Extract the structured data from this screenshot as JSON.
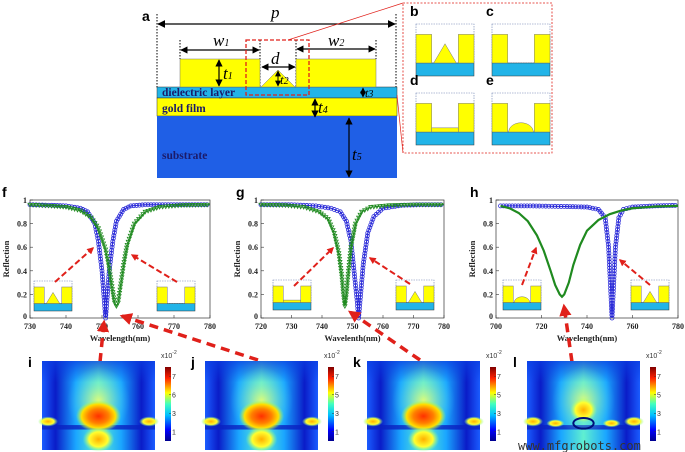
{
  "panel_a": {
    "label": "a",
    "dims": {
      "p": {
        "sym": "p",
        "sub": ""
      },
      "w1": {
        "sym": "w",
        "sub": "1"
      },
      "w2": {
        "sym": "w",
        "sub": "2"
      },
      "d": {
        "sym": "d",
        "sub": ""
      },
      "t1": {
        "sym": "t",
        "sub": "1"
      },
      "t2": {
        "sym": "t",
        "sub": "2"
      },
      "t3": {
        "sym": "t",
        "sub": "3"
      },
      "t4": {
        "sym": "t",
        "sub": "4"
      },
      "t5": {
        "sym": "t",
        "sub": "5"
      }
    },
    "layers": {
      "dielectric": "dielectric layer",
      "gold": "gold film",
      "substrate": "substrate"
    }
  },
  "subpanels": [
    {
      "label": "b",
      "shape": "triangle"
    },
    {
      "label": "c",
      "shape": "empty"
    },
    {
      "label": "d",
      "shape": "flat"
    },
    {
      "label": "e",
      "shape": "dome"
    }
  ],
  "maps": [
    {
      "label": "i",
      "scale": "x10",
      "exp": "-2",
      "ticks": [
        "1",
        "3",
        "6",
        "7"
      ]
    },
    {
      "label": "j",
      "scale": "x10",
      "exp": "-2",
      "ticks": [
        "1",
        "3",
        "5",
        "7"
      ]
    },
    {
      "label": "k",
      "scale": "x10",
      "exp": "-2",
      "ticks": [
        "1",
        "3",
        "5",
        "7"
      ]
    },
    {
      "label": "l",
      "scale": "x10",
      "exp": "-2",
      "ticks": [
        "1",
        "3",
        "5",
        "7"
      ]
    }
  ],
  "watermark": "www.mfgrobots.com",
  "colors": {
    "gold": "#ffff00",
    "dielectric": "#22b4e8",
    "substrate": "#1f5fe6",
    "blue_series": "#2a2ad8",
    "green_series": "#1f8a1f",
    "arrow": "#e0201a"
  },
  "chart_data": [
    {
      "label": "f",
      "type": "line",
      "xlabel": "Wavelength(nm)",
      "ylabel": "Reflection",
      "xlim": [
        730,
        780
      ],
      "ylim": [
        0,
        1
      ],
      "xticks": [
        "730",
        "740",
        "750",
        "760",
        "770",
        "780"
      ],
      "yticks": [
        "0",
        "0.2",
        "0.4",
        "0.6",
        "0.8",
        "1"
      ],
      "insets": [
        "triangle",
        "empty"
      ],
      "series": [
        {
          "marker": "circle",
          "color": "#2a2ad8",
          "x": [
            730,
            736,
            740,
            744,
            746,
            748,
            749,
            750,
            750.5,
            751,
            751.5,
            752,
            753,
            754,
            756,
            758,
            762,
            770,
            780
          ],
          "y": [
            0.96,
            0.955,
            0.95,
            0.93,
            0.9,
            0.8,
            0.65,
            0.4,
            0.2,
            0.0,
            0.2,
            0.4,
            0.65,
            0.82,
            0.92,
            0.95,
            0.96,
            0.96,
            0.96
          ]
        },
        {
          "marker": "triangle",
          "color": "#1f8a1f",
          "x": [
            730,
            736,
            740,
            744,
            747,
            749,
            751,
            752,
            753,
            753.5,
            754,
            754.5,
            755,
            756,
            757,
            759,
            762,
            766,
            772,
            780
          ],
          "y": [
            0.96,
            0.95,
            0.94,
            0.91,
            0.85,
            0.76,
            0.58,
            0.42,
            0.22,
            0.13,
            0.1,
            0.13,
            0.24,
            0.45,
            0.62,
            0.8,
            0.9,
            0.94,
            0.955,
            0.96
          ]
        }
      ]
    },
    {
      "label": "g",
      "type": "line",
      "xlabel": "Wavelenth(nm)",
      "ylabel": "Reflection",
      "xlim": [
        720,
        780
      ],
      "ylim": [
        0,
        1
      ],
      "xticks": [
        "720",
        "730",
        "740",
        "750",
        "760",
        "770",
        "780"
      ],
      "yticks": [
        "0",
        "0.2",
        "0.4",
        "0.6",
        "0.8",
        "1"
      ],
      "insets": [
        "flat",
        "triangle"
      ],
      "series": [
        {
          "marker": "circle",
          "color": "#2a2ad8",
          "x": [
            720,
            730,
            738,
            743,
            746,
            748,
            749.5,
            750.5,
            751.5,
            752,
            752.5,
            753.5,
            755,
            757,
            760,
            766,
            772,
            780
          ],
          "y": [
            0.96,
            0.96,
            0.95,
            0.93,
            0.9,
            0.82,
            0.65,
            0.4,
            0.15,
            0.0,
            0.15,
            0.45,
            0.72,
            0.86,
            0.93,
            0.955,
            0.96,
            0.96
          ]
        },
        {
          "marker": "triangle",
          "color": "#1f8a1f",
          "x": [
            720,
            728,
            734,
            739,
            742,
            744,
            745.5,
            746.5,
            747,
            747.5,
            748,
            748.5,
            749.5,
            751,
            753,
            756,
            762,
            770,
            780
          ],
          "y": [
            0.96,
            0.955,
            0.94,
            0.9,
            0.84,
            0.72,
            0.55,
            0.35,
            0.2,
            0.1,
            0.2,
            0.35,
            0.6,
            0.8,
            0.9,
            0.94,
            0.955,
            0.96,
            0.96
          ]
        }
      ]
    },
    {
      "label": "h",
      "type": "line",
      "xlabel": "Wavelength(nm)",
      "ylabel": "Reflection",
      "xlim": [
        700,
        780
      ],
      "ylim": [
        0,
        1
      ],
      "xticks": [
        "700",
        "720",
        "740",
        "760",
        "780"
      ],
      "yticks": [
        "0",
        "0.2",
        "0.4",
        "0.6",
        "0.8",
        "1"
      ],
      "insets": [
        "dome",
        "triangle"
      ],
      "series": [
        {
          "marker": "circle",
          "color": "#2a2ad8",
          "x": [
            702,
            715,
            730,
            740,
            745,
            748,
            749.5,
            750.5,
            751,
            751.5,
            752.5,
            754,
            756,
            760,
            770,
            780
          ],
          "y": [
            0.95,
            0.95,
            0.945,
            0.94,
            0.92,
            0.85,
            0.6,
            0.2,
            0.0,
            0.2,
            0.6,
            0.85,
            0.92,
            0.94,
            0.95,
            0.955
          ]
        },
        {
          "marker": "none",
          "color": "#1f8a1f",
          "x": [
            702,
            706,
            710,
            714,
            718,
            721,
            724,
            726,
            728,
            729,
            730,
            732,
            734,
            737,
            740,
            745,
            750,
            755,
            760,
            770,
            780
          ],
          "y": [
            0.95,
            0.93,
            0.89,
            0.82,
            0.7,
            0.57,
            0.4,
            0.28,
            0.2,
            0.18,
            0.2,
            0.3,
            0.45,
            0.62,
            0.74,
            0.83,
            0.88,
            0.91,
            0.93,
            0.945,
            0.95
          ]
        }
      ]
    }
  ]
}
